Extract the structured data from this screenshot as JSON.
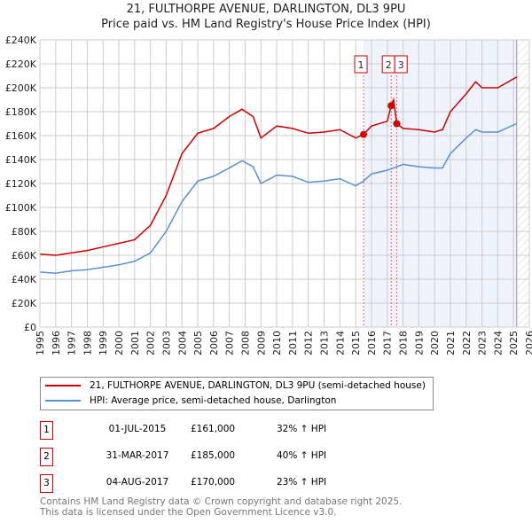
{
  "chart_data": {
    "type": "line",
    "title": "21, FULTHORPE AVENUE, DARLINGTON, DL3 9PU",
    "subtitle": "Price paid vs. HM Land Registry's House Price Index (HPI)",
    "xlim": [
      1995,
      2026
    ],
    "ylim": [
      0,
      240000
    ],
    "yticks": [
      "£0",
      "£20K",
      "£40K",
      "£60K",
      "£80K",
      "£100K",
      "£120K",
      "£140K",
      "£160K",
      "£180K",
      "£200K",
      "£220K",
      "£240K"
    ],
    "xticks": [
      "1995",
      "1996",
      "1997",
      "1998",
      "1999",
      "2000",
      "2001",
      "2002",
      "2003",
      "2004",
      "2005",
      "2006",
      "2007",
      "2008",
      "2009",
      "2010",
      "2011",
      "2012",
      "2013",
      "2014",
      "2015",
      "2016",
      "2017",
      "2018",
      "2019",
      "2020",
      "2021",
      "2022",
      "2023",
      "2024",
      "2025",
      "2026"
    ],
    "grid": true,
    "series": [
      {
        "name": "21, FULTHORPE AVENUE, DARLINGTON, DL3 9PU (semi-detached house)",
        "color": "#cc0000",
        "x": [
          1995,
          1996,
          1997,
          1998,
          1999,
          2000,
          2001,
          2002,
          2003,
          2004,
          2005,
          2006,
          2007,
          2007.8,
          2008.5,
          2009,
          2010,
          2011,
          2012,
          2013,
          2014,
          2015,
          2015.5,
          2016,
          2017,
          2017.25,
          2017.4,
          2017.6,
          2018,
          2019,
          2020,
          2020.5,
          2021,
          2022,
          2022.6,
          2023,
          2024,
          2025.2
        ],
        "y": [
          61000,
          60000,
          62000,
          64000,
          67000,
          70000,
          73000,
          85000,
          110000,
          145000,
          162000,
          166000,
          176000,
          182000,
          176000,
          158000,
          168000,
          166000,
          162000,
          163000,
          165000,
          158000,
          161000,
          168000,
          172000,
          185000,
          190000,
          170000,
          166000,
          165000,
          163000,
          165000,
          180000,
          195000,
          205000,
          200000,
          200000,
          209000
        ]
      },
      {
        "name": "HPI: Average price, semi-detached house, Darlington",
        "color": "#5b8fd0",
        "x": [
          1995,
          1996,
          1997,
          1998,
          1999,
          2000,
          2001,
          2002,
          2003,
          2004,
          2005,
          2006,
          2007,
          2007.8,
          2008.5,
          2009,
          2010,
          2011,
          2012,
          2013,
          2014,
          2015,
          2015.5,
          2016,
          2017,
          2018,
          2019,
          2020,
          2020.5,
          2021,
          2022,
          2022.6,
          2023,
          2024,
          2025.2
        ],
        "y": [
          46000,
          45000,
          47000,
          48000,
          50000,
          52000,
          55000,
          62000,
          80000,
          105000,
          122000,
          126000,
          133000,
          139000,
          134000,
          120000,
          127000,
          126000,
          121000,
          122000,
          124000,
          118000,
          122000,
          128000,
          131000,
          136000,
          134000,
          133000,
          133000,
          145000,
          158000,
          165000,
          163000,
          163000,
          170000
        ]
      }
    ],
    "sales": [
      {
        "label": "1",
        "date": "01-JUL-2015",
        "x": 2015.5,
        "price": "£161,000",
        "value": 161000,
        "hpi": "32% ↑ HPI"
      },
      {
        "label": "2",
        "date": "31-MAR-2017",
        "x": 2017.25,
        "price": "£185,000",
        "value": 185000,
        "hpi": "40% ↑ HPI"
      },
      {
        "label": "3",
        "date": "04-AUG-2017",
        "x": 2017.6,
        "price": "£170,000",
        "value": 170000,
        "hpi": "23% ↑ HPI"
      }
    ],
    "data_end": 2025.2
  },
  "footer": {
    "line1": "Contains HM Land Registry data © Crown copyright and database right 2025.",
    "line2": "This data is licensed under the Open Government Licence v3.0."
  }
}
